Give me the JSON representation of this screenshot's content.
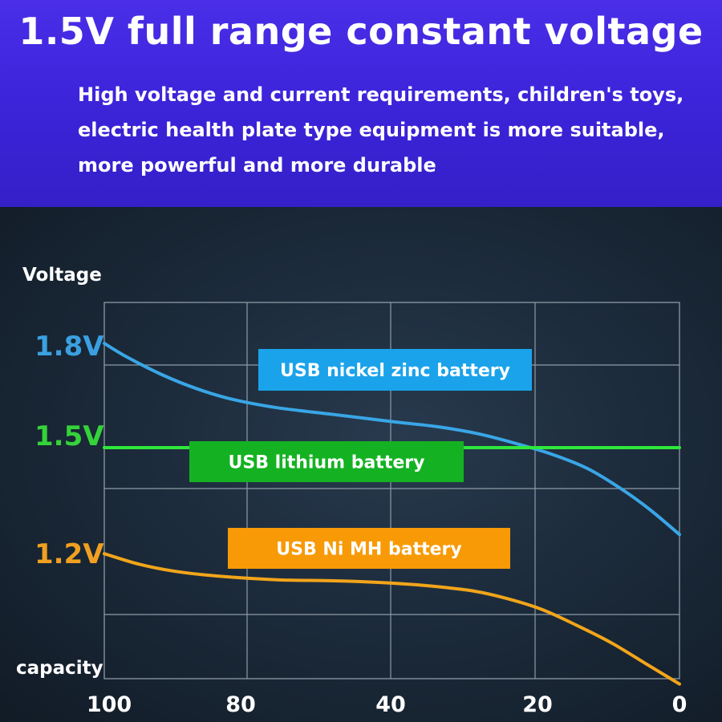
{
  "header": {
    "title": "1.5V full range constant voltage",
    "description_lines": [
      "High voltage and current requirements, children's toys,",
      "electric health plate type equipment is more suitable,",
      "more powerful and more durable"
    ]
  },
  "chart_data": {
    "type": "line",
    "ylabel": "Voltage",
    "xlabel": "capacity",
    "x_ticks": [
      "100",
      "80",
      "40",
      "20",
      "0"
    ],
    "y_ticks": [
      "1.8V",
      "1.5V",
      "1.2V"
    ],
    "xlim": [
      100,
      0
    ],
    "grid": true,
    "series": [
      {
        "name": "USB nickel zinc battery",
        "color": "#39a6e6",
        "label_bg": "#1aa3ea",
        "tick_color": "#3aa0e0",
        "points": [
          [
            100,
            1.8
          ],
          [
            96,
            1.76
          ],
          [
            90,
            1.71
          ],
          [
            84,
            1.67
          ],
          [
            78,
            1.64
          ],
          [
            70,
            1.615
          ],
          [
            60,
            1.595
          ],
          [
            50,
            1.575
          ],
          [
            42,
            1.56
          ],
          [
            35,
            1.54
          ],
          [
            28,
            1.51
          ],
          [
            22,
            1.48
          ],
          [
            16,
            1.44
          ],
          [
            10,
            1.38
          ],
          [
            5,
            1.32
          ],
          [
            0,
            1.25
          ]
        ]
      },
      {
        "name": "USB lithium battery",
        "color": "#2ee83a",
        "label_bg": "#14b222",
        "tick_color": "#35d33a",
        "points": [
          [
            100,
            1.5
          ],
          [
            0,
            1.5
          ]
        ]
      },
      {
        "name": "USB Ni MH battery",
        "color": "#f2a51a",
        "label_bg": "#f79a06",
        "tick_color": "#f0a020",
        "points": [
          [
            100,
            1.195
          ],
          [
            94,
            1.165
          ],
          [
            88,
            1.145
          ],
          [
            80,
            1.13
          ],
          [
            70,
            1.12
          ],
          [
            60,
            1.117
          ],
          [
            52,
            1.112
          ],
          [
            44,
            1.103
          ],
          [
            36,
            1.088
          ],
          [
            30,
            1.066
          ],
          [
            24,
            1.035
          ],
          [
            18,
            0.99
          ],
          [
            12,
            0.94
          ],
          [
            6,
            0.88
          ],
          [
            2,
            0.84
          ],
          [
            0,
            0.82
          ]
        ]
      }
    ]
  }
}
